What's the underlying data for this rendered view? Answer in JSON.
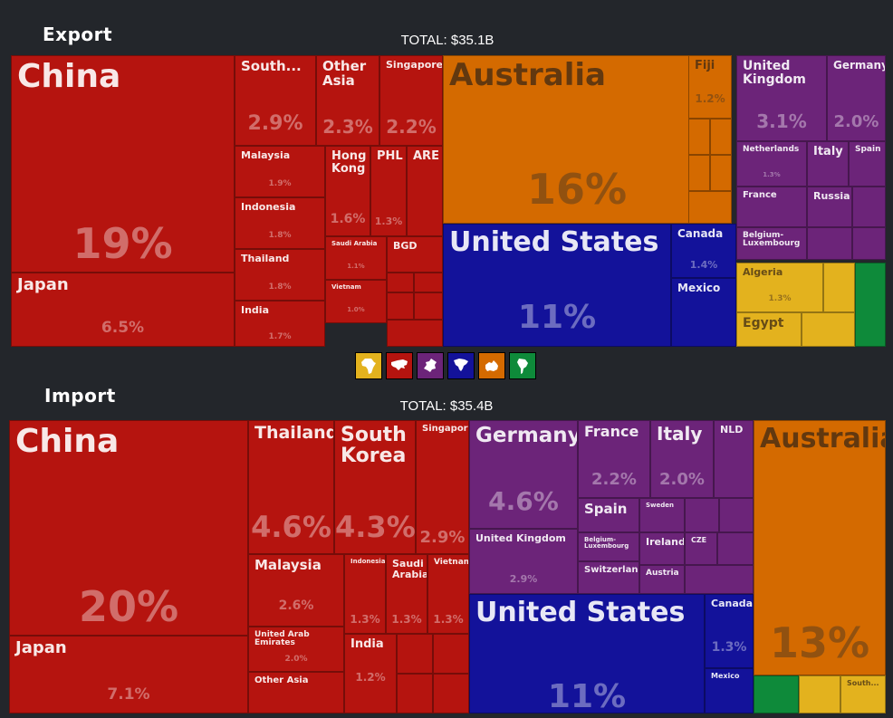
{
  "headings": {
    "export": "Export",
    "import": "Import"
  },
  "totals": {
    "export": "TOTAL: $35.1B",
    "import": "TOTAL: $35.4B"
  },
  "colors": {
    "asia": "#b5140f",
    "oceania": "#d46a00",
    "north_america": "#13129a",
    "europe": "#6c2479",
    "africa": "#e3b21e",
    "south_america": "#0e8a3a"
  },
  "legend": [
    {
      "region": "africa",
      "icon": "africa-icon",
      "color": "#e3b21e"
    },
    {
      "region": "asia",
      "icon": "asia-icon",
      "color": "#b5140f"
    },
    {
      "region": "europe",
      "icon": "europe-icon",
      "color": "#6c2479"
    },
    {
      "region": "north_america",
      "icon": "north-america-icon",
      "color": "#13129a"
    },
    {
      "region": "oceania",
      "icon": "oceania-icon",
      "color": "#d46a00"
    },
    {
      "region": "south_america",
      "icon": "south-america-icon",
      "color": "#0e8a3a"
    }
  ],
  "chart_data": [
    {
      "type": "treemap",
      "title": "Export",
      "total": "TOTAL: $35.1B",
      "series": [
        {
          "name": "China",
          "region": "asia",
          "value": 19,
          "label": "19%"
        },
        {
          "name": "Japan",
          "region": "asia",
          "value": 6.5,
          "label": "6.5%"
        },
        {
          "name": "South...",
          "region": "asia",
          "value": 2.9,
          "label": "2.9%"
        },
        {
          "name": "Other Asia",
          "region": "asia",
          "value": 2.3,
          "label": "2.3%"
        },
        {
          "name": "Singapore",
          "region": "asia",
          "value": 2.2,
          "label": "2.2%"
        },
        {
          "name": "Malaysia",
          "region": "asia",
          "value": 1.9,
          "label": "1.9%"
        },
        {
          "name": "Indonesia",
          "region": "asia",
          "value": 1.8,
          "label": "1.8%"
        },
        {
          "name": "Thailand",
          "region": "asia",
          "value": 1.8,
          "label": "1.8%"
        },
        {
          "name": "India",
          "region": "asia",
          "value": 1.7,
          "label": "1.7%"
        },
        {
          "name": "Hong Kong",
          "region": "asia",
          "value": 1.6,
          "label": "1.6%"
        },
        {
          "name": "PHL",
          "region": "asia",
          "value": 1.3,
          "label": "1.3%"
        },
        {
          "name": "ARE",
          "region": "asia",
          "value": null,
          "label": ""
        },
        {
          "name": "Saudi Arabia",
          "region": "asia",
          "value": 1.1,
          "label": "1.1%"
        },
        {
          "name": "Vietnam",
          "region": "asia",
          "value": 1.0,
          "label": "1.0%"
        },
        {
          "name": "BGD",
          "region": "asia",
          "value": null,
          "label": ""
        },
        {
          "name": "Australia",
          "region": "oceania",
          "value": 16,
          "label": "16%"
        },
        {
          "name": "Fiji",
          "region": "oceania",
          "value": 1.2,
          "label": "1.2%"
        },
        {
          "name": "United States",
          "region": "north_america",
          "value": 11,
          "label": "11%"
        },
        {
          "name": "Canada",
          "region": "north_america",
          "value": 1.4,
          "label": "1.4%"
        },
        {
          "name": "Mexico",
          "region": "north_america",
          "value": null,
          "label": ""
        },
        {
          "name": "United Kingdom",
          "region": "europe",
          "value": 3.1,
          "label": "3.1%"
        },
        {
          "name": "Germany",
          "region": "europe",
          "value": 2.0,
          "label": "2.0%"
        },
        {
          "name": "Netherlands",
          "region": "europe",
          "value": 1.3,
          "label": "1.3%"
        },
        {
          "name": "Italy",
          "region": "europe",
          "value": null,
          "label": ""
        },
        {
          "name": "Spain",
          "region": "europe",
          "value": null,
          "label": ""
        },
        {
          "name": "France",
          "region": "europe",
          "value": null,
          "label": ""
        },
        {
          "name": "Russia",
          "region": "europe",
          "value": null,
          "label": ""
        },
        {
          "name": "Belgium-Luxembourg",
          "region": "europe",
          "value": null,
          "label": ""
        },
        {
          "name": "Algeria",
          "region": "africa",
          "value": 1.3,
          "label": "1.3%"
        },
        {
          "name": "Egypt",
          "region": "africa",
          "value": null,
          "label": ""
        }
      ]
    },
    {
      "type": "treemap",
      "title": "Import",
      "total": "TOTAL: $35.4B",
      "series": [
        {
          "name": "China",
          "region": "asia",
          "value": 20,
          "label": "20%"
        },
        {
          "name": "Japan",
          "region": "asia",
          "value": 7.1,
          "label": "7.1%"
        },
        {
          "name": "Thailand",
          "region": "asia",
          "value": 4.6,
          "label": "4.6%"
        },
        {
          "name": "South Korea",
          "region": "asia",
          "value": 4.3,
          "label": "4.3%"
        },
        {
          "name": "Singapore",
          "region": "asia",
          "value": 2.9,
          "label": "2.9%"
        },
        {
          "name": "Malaysia",
          "region": "asia",
          "value": 2.6,
          "label": "2.6%"
        },
        {
          "name": "United Arab Emirates",
          "region": "asia",
          "value": 2.0,
          "label": "2.0%"
        },
        {
          "name": "Other Asia",
          "region": "asia",
          "value": null,
          "label": ""
        },
        {
          "name": "Indonesia",
          "region": "asia",
          "value": 1.3,
          "label": "1.3%"
        },
        {
          "name": "Saudi Arabia",
          "region": "asia",
          "value": 1.3,
          "label": "1.3%"
        },
        {
          "name": "Vietnam",
          "region": "asia",
          "value": 1.3,
          "label": "1.3%"
        },
        {
          "name": "India",
          "region": "asia",
          "value": 1.2,
          "label": "1.2%"
        },
        {
          "name": "Germany",
          "region": "europe",
          "value": 4.6,
          "label": "4.6%"
        },
        {
          "name": "United Kingdom",
          "region": "europe",
          "value": 2.9,
          "label": "2.9%"
        },
        {
          "name": "France",
          "region": "europe",
          "value": 2.2,
          "label": "2.2%"
        },
        {
          "name": "Italy",
          "region": "europe",
          "value": 2.0,
          "label": "2.0%"
        },
        {
          "name": "NLD",
          "region": "europe",
          "value": null,
          "label": ""
        },
        {
          "name": "Spain",
          "region": "europe",
          "value": null,
          "label": ""
        },
        {
          "name": "Sweden",
          "region": "europe",
          "value": null,
          "label": ""
        },
        {
          "name": "Belgium-Luxembourg",
          "region": "europe",
          "value": null,
          "label": ""
        },
        {
          "name": "Ireland",
          "region": "europe",
          "value": null,
          "label": ""
        },
        {
          "name": "CZE",
          "region": "europe",
          "value": null,
          "label": ""
        },
        {
          "name": "Switzerland",
          "region": "europe",
          "value": null,
          "label": ""
        },
        {
          "name": "Austria",
          "region": "europe",
          "value": null,
          "label": ""
        },
        {
          "name": "United States",
          "region": "north_america",
          "value": 11,
          "label": "11%"
        },
        {
          "name": "Canada",
          "region": "north_america",
          "value": 1.3,
          "label": "1.3%"
        },
        {
          "name": "Mexico",
          "region": "north_america",
          "value": null,
          "label": ""
        },
        {
          "name": "Australia",
          "region": "oceania",
          "value": 13,
          "label": "13%"
        },
        {
          "name": "South...",
          "region": "africa",
          "value": null,
          "label": ""
        }
      ]
    }
  ]
}
